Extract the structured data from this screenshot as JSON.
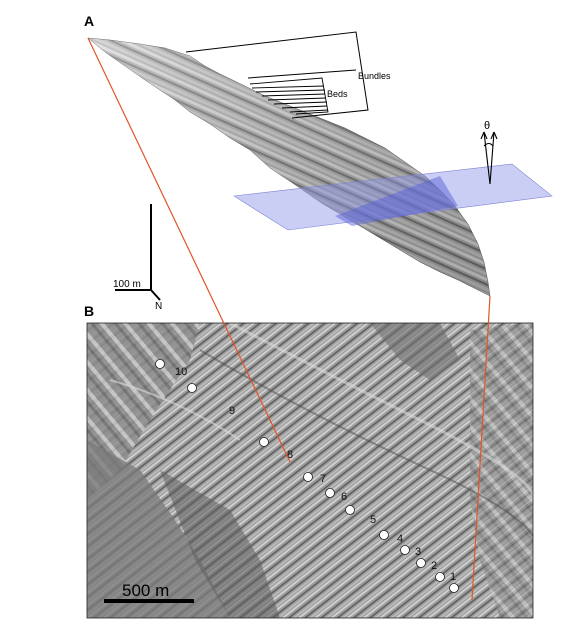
{
  "panel_a": {
    "label": "A",
    "bracket_labels": {
      "bundles": "Bundles",
      "beds": "Beds"
    },
    "scale_bar": {
      "length_label": "100 m",
      "north_label": "N"
    },
    "dip_symbol": "θ",
    "plane_color": "#8c93e6",
    "trace_color": "#e2542a"
  },
  "panel_b": {
    "label": "B",
    "points": [
      "1",
      "2",
      "3",
      "4",
      "5",
      "6",
      "7",
      "8",
      "9",
      "10"
    ],
    "scale_bar": {
      "length_label": "500 m"
    }
  }
}
